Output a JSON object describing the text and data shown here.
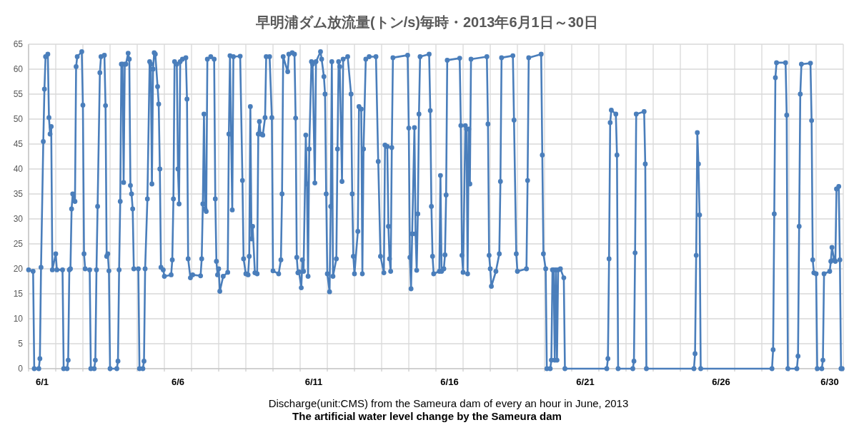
{
  "chart_data": {
    "type": "line",
    "title": "早明浦ダム放流量(トン/s)毎時・2013年6月1日～30日",
    "annotations": [
      "Discharge(unit:CMS) from the Sameura dam of every an hour in June, 2013",
      "The artificial water level change by the Sameura dam"
    ],
    "marker": "circle",
    "line_style": "solid",
    "grid": true,
    "xlim": [
      "2013-06-01T00:00",
      "2013-07-01T00:00"
    ],
    "ylim": [
      0,
      65
    ],
    "yticks": [
      0,
      5,
      10,
      15,
      20,
      25,
      30,
      35,
      40,
      45,
      50,
      55,
      60,
      65
    ],
    "xticks": [
      {
        "value": "2013-06-01",
        "label": null
      },
      {
        "value": "2013-06-02",
        "label": null
      },
      {
        "value": "2013-06-03",
        "label": null
      },
      {
        "value": "2013-06-04",
        "label": null
      },
      {
        "value": "2013-06-05",
        "label": null
      },
      {
        "value": "2013-06-06",
        "label": null
      },
      {
        "value": "2013-06-07",
        "label": null
      },
      {
        "value": "2013-06-08",
        "label": null
      },
      {
        "value": "2013-06-09",
        "label": null
      },
      {
        "value": "2013-06-10",
        "label": null
      },
      {
        "value": "2013-06-11",
        "label": null
      },
      {
        "value": "2013-06-12",
        "label": null
      },
      {
        "value": "2013-06-13",
        "label": null
      },
      {
        "value": "2013-06-14",
        "label": null
      },
      {
        "value": "2013-06-15",
        "label": null
      },
      {
        "value": "2013-06-16",
        "label": null
      },
      {
        "value": "2013-06-17",
        "label": null
      },
      {
        "value": "2013-06-18",
        "label": null
      },
      {
        "value": "2013-06-19",
        "label": null
      },
      {
        "value": "2013-06-20",
        "label": null
      },
      {
        "value": "2013-06-21",
        "label": null
      },
      {
        "value": "2013-06-22",
        "label": null
      },
      {
        "value": "2013-06-23",
        "label": null
      },
      {
        "value": "2013-06-24",
        "label": null
      },
      {
        "value": "2013-06-25",
        "label": null
      },
      {
        "value": "2013-06-26",
        "label": null
      },
      {
        "value": "2013-06-27",
        "label": null
      },
      {
        "value": "2013-06-28",
        "label": null
      },
      {
        "value": "2013-06-29",
        "label": null
      },
      {
        "value": "2013-06-30",
        "label": null
      },
      {
        "value": "2013-07-01",
        "label": null
      },
      {
        "value": "2013-06-01T12:00",
        "label": "6/1"
      },
      {
        "value": "2013-06-06T12:00",
        "label": "6/6"
      },
      {
        "value": "2013-06-11T12:00",
        "label": "6/11"
      },
      {
        "value": "2013-06-16T12:00",
        "label": "6/16"
      },
      {
        "value": "2013-06-21T12:00",
        "label": "6/21"
      },
      {
        "value": "2013-06-26T12:00",
        "label": "6/26"
      },
      {
        "value": "2013-06-30T12:00",
        "label": "6/30"
      }
    ],
    "series": [
      {
        "color": "#4a7ebb",
        "x": [
          "2013-06-01T00:00",
          "2013-06-01T04:00",
          "2013-06-01T05:00",
          "2013-06-01T09:00",
          "2013-06-01T10:00",
          "2013-06-01T11:00",
          "2013-06-01T13:00",
          "2013-06-01T14:00",
          "2013-06-01T15:00",
          "2013-06-01T17:00",
          "2013-06-01T18:00",
          "2013-06-01T19:00",
          "2013-06-01T20:00",
          "2013-06-01T21:00",
          "2013-06-02T00:00",
          "2013-06-02T01:00",
          "2013-06-02T06:00",
          "2013-06-02T07:00",
          "2013-06-02T10:00",
          "2013-06-02T11:00",
          "2013-06-02T12:00",
          "2013-06-02T13:00",
          "2013-06-02T14:00",
          "2013-06-02T15:00",
          "2013-06-02T17:00",
          "2013-06-02T18:00",
          "2013-06-02T19:00",
          "2013-06-02T23:00",
          "2013-06-03T00:00",
          "2013-06-03T01:00",
          "2013-06-03T02:00",
          "2013-06-03T06:00",
          "2013-06-03T07:00",
          "2013-06-03T10:00",
          "2013-06-03T11:00",
          "2013-06-03T12:00",
          "2013-06-03T13:00",
          "2013-06-03T15:00",
          "2013-06-03T16:00",
          "2013-06-03T19:00",
          "2013-06-03T20:00",
          "2013-06-03T21:00",
          "2013-06-03T22:00",
          "2013-06-03T23:00",
          "2013-06-04T00:00",
          "2013-06-04T06:00",
          "2013-06-04T07:00",
          "2013-06-04T08:00",
          "2013-06-04T09:00",
          "2013-06-04T10:00",
          "2013-06-04T11:00",
          "2013-06-04T12:00",
          "2013-06-04T13:00",
          "2013-06-04T14:00",
          "2013-06-04T16:00",
          "2013-06-04T17:00",
          "2013-06-04T18:00",
          "2013-06-04T19:00",
          "2013-06-04T20:00",
          "2013-06-04T21:00",
          "2013-06-05T01:00",
          "2013-06-05T02:00",
          "2013-06-05T05:00",
          "2013-06-05T06:00",
          "2013-06-05T07:00",
          "2013-06-05T09:00",
          "2013-06-05T11:00",
          "2013-06-05T12:00",
          "2013-06-05T13:00",
          "2013-06-05T14:00",
          "2013-06-05T15:00",
          "2013-06-05T16:00",
          "2013-06-05T18:00",
          "2013-06-05T19:00",
          "2013-06-05T20:00",
          "2013-06-05T21:00",
          "2013-06-05T23:00",
          "2013-06-06T00:00",
          "2013-06-06T06:00",
          "2013-06-06T07:00",
          "2013-06-06T08:00",
          "2013-06-06T09:00",
          "2013-06-06T11:00",
          "2013-06-06T12:00",
          "2013-06-06T13:00",
          "2013-06-06T14:00",
          "2013-06-06T16:00",
          "2013-06-06T19:00",
          "2013-06-06T20:00",
          "2013-06-06T21:00",
          "2013-06-06T23:00",
          "2013-06-07T01:00",
          "2013-06-07T08:00",
          "2013-06-07T09:00",
          "2013-06-07T10:00",
          "2013-06-07T11:00",
          "2013-06-07T12:00",
          "2013-06-07T13:00",
          "2013-06-07T14:00",
          "2013-06-07T17:00",
          "2013-06-07T20:00",
          "2013-06-07T21:00",
          "2013-06-07T22:00",
          "2013-06-07T23:00",
          "2013-06-08T00:00",
          "2013-06-08T01:00",
          "2013-06-08T04:00",
          "2013-06-08T08:00",
          "2013-06-08T09:00",
          "2013-06-08T10:00",
          "2013-06-08T11:00",
          "2013-06-08T12:00",
          "2013-06-08T13:00",
          "2013-06-08T19:00",
          "2013-06-08T21:00",
          "2013-06-08T22:00",
          "2013-06-09T00:00",
          "2013-06-09T02:00",
          "2013-06-09T03:00",
          "2013-06-09T04:00",
          "2013-06-09T05:00",
          "2013-06-09T06:00",
          "2013-06-09T08:00",
          "2013-06-09T10:00",
          "2013-06-09T11:00",
          "2013-06-09T12:00",
          "2013-06-09T13:00",
          "2013-06-09T15:00",
          "2013-06-09T17:00",
          "2013-06-09T18:00",
          "2013-06-09T21:00",
          "2013-06-09T23:00",
          "2013-06-10T00:00",
          "2013-06-10T05:00",
          "2013-06-10T07:00",
          "2013-06-10T08:00",
          "2013-06-10T09:00",
          "2013-06-10T13:00",
          "2013-06-10T14:00",
          "2013-06-10T17:00",
          "2013-06-10T19:00",
          "2013-06-10T20:00",
          "2013-06-10T21:00",
          "2013-06-10T22:00",
          "2013-06-10T23:00",
          "2013-06-11T01:00",
          "2013-06-11T02:00",
          "2013-06-11T03:00",
          "2013-06-11T05:00",
          "2013-06-11T06:00",
          "2013-06-11T07:00",
          "2013-06-11T08:00",
          "2013-06-11T10:00",
          "2013-06-11T11:00",
          "2013-06-11T13:00",
          "2013-06-11T14:00",
          "2013-06-11T18:00",
          "2013-06-11T19:00",
          "2013-06-11T21:00",
          "2013-06-11T22:00",
          "2013-06-11T23:00",
          "2013-06-12T00:00",
          "2013-06-12T02:00",
          "2013-06-12T03:00",
          "2013-06-12T04:00",
          "2013-06-12T05:00",
          "2013-06-12T08:00",
          "2013-06-12T09:00",
          "2013-06-12T10:00",
          "2013-06-12T11:00",
          "2013-06-12T13:00",
          "2013-06-12T14:00",
          "2013-06-12T18:00",
          "2013-06-12T21:00",
          "2013-06-12T22:00",
          "2013-06-12T23:00",
          "2013-06-13T00:00",
          "2013-06-13T03:00",
          "2013-06-13T04:00",
          "2013-06-13T06:00",
          "2013-06-13T07:00",
          "2013-06-13T08:00",
          "2013-06-13T10:00",
          "2013-06-13T13:00",
          "2013-06-13T19:00",
          "2013-06-13T21:00",
          "2013-06-13T23:00",
          "2013-06-14T02:00",
          "2013-06-14T03:00",
          "2013-06-14T05:00",
          "2013-06-14T06:00",
          "2013-06-14T07:00",
          "2013-06-14T08:00",
          "2013-06-14T09:00",
          "2013-06-14T10:00",
          "2013-06-14T23:00",
          "2013-06-15T00:00",
          "2013-06-15T01:00",
          "2013-06-15T02:00",
          "2013-06-15T03:00",
          "2013-06-15T05:00",
          "2013-06-15T06:00",
          "2013-06-15T07:00",
          "2013-06-15T08:00",
          "2013-06-15T09:00",
          "2013-06-15T10:00",
          "2013-06-15T18:00",
          "2013-06-15T19:00",
          "2013-06-15T20:00",
          "2013-06-15T21:00",
          "2013-06-15T22:00",
          "2013-06-16T03:00",
          "2013-06-16T04:00",
          "2013-06-16T05:00",
          "2013-06-16T07:00",
          "2013-06-16T08:00",
          "2013-06-16T09:00",
          "2013-06-16T10:00",
          "2013-06-16T21:00",
          "2013-06-16T22:00",
          "2013-06-16T23:00",
          "2013-06-17T00:00",
          "2013-06-17T02:00",
          "2013-06-17T03:00",
          "2013-06-17T04:00",
          "2013-06-17T05:00",
          "2013-06-17T06:00",
          "2013-06-17T07:00",
          "2013-06-17T21:00",
          "2013-06-17T22:00",
          "2013-06-17T23:00",
          "2013-06-18T00:00",
          "2013-06-18T01:00",
          "2013-06-18T05:00",
          "2013-06-18T08:00",
          "2013-06-18T09:00",
          "2013-06-18T10:00",
          "2013-06-18T20:00",
          "2013-06-18T21:00",
          "2013-06-18T23:00",
          "2013-06-19T00:00",
          "2013-06-19T08:00",
          "2013-06-19T09:00",
          "2013-06-19T10:00",
          "2013-06-19T21:00",
          "2013-06-19T22:00",
          "2013-06-19T23:00",
          "2013-06-20T01:00",
          "2013-06-20T02:00",
          "2013-06-20T05:00",
          "2013-06-20T06:00",
          "2013-06-20T07:00",
          "2013-06-20T08:00",
          "2013-06-20T09:00",
          "2013-06-20T10:00",
          "2013-06-20T11:00",
          "2013-06-20T12:00",
          "2013-06-20T14:00",
          "2013-06-20T17:00",
          "2013-06-20T18:00",
          "2013-06-22T07:00",
          "2013-06-22T08:00",
          "2013-06-22T09:00",
          "2013-06-22T10:00",
          "2013-06-22T11:00",
          "2013-06-22T15:00",
          "2013-06-22T16:00",
          "2013-06-22T17:00",
          "2013-06-23T06:00",
          "2013-06-23T07:00",
          "2013-06-23T08:00",
          "2013-06-23T09:00",
          "2013-06-23T16:00",
          "2013-06-23T17:00",
          "2013-06-23T18:00",
          "2013-06-25T12:00",
          "2013-06-25T13:00",
          "2013-06-25T14:00",
          "2013-06-25T15:00",
          "2013-06-25T16:00",
          "2013-06-25T17:00",
          "2013-06-25T18:00",
          "2013-06-28T09:00",
          "2013-06-28T10:00",
          "2013-06-28T11:00",
          "2013-06-28T12:00",
          "2013-06-28T13:00",
          "2013-06-28T21:00",
          "2013-06-28T22:00",
          "2013-06-28T23:00",
          "2013-06-29T07:00",
          "2013-06-29T08:00",
          "2013-06-29T09:00",
          "2013-06-29T10:00",
          "2013-06-29T11:00",
          "2013-06-29T19:00",
          "2013-06-29T20:00",
          "2013-06-29T21:00",
          "2013-06-29T22:00",
          "2013-06-30T00:00",
          "2013-06-30T01:00",
          "2013-06-30T05:00",
          "2013-06-30T06:00",
          "2013-06-30T07:00",
          "2013-06-30T12:00",
          "2013-06-30T13:00",
          "2013-06-30T14:00",
          "2013-06-30T16:00",
          "2013-06-30T17:00",
          "2013-06-30T18:00",
          "2013-06-30T20:00",
          "2013-06-30T21:00",
          "2013-06-30T22:00",
          "2013-06-30T23:00"
        ],
        "values": [
          19.8,
          19.5,
          0,
          0,
          2,
          20.3,
          45.5,
          56,
          62.5,
          63,
          50.3,
          47,
          48.5,
          19.8,
          23,
          19.8,
          19.8,
          0,
          0,
          1.7,
          19.8,
          20,
          32,
          35,
          33.5,
          60.5,
          62.5,
          63.5,
          52.8,
          23,
          20,
          19.8,
          0,
          0,
          1.7,
          19.8,
          32.5,
          59.3,
          62.5,
          62.8,
          52.7,
          22.5,
          23,
          19.6,
          0,
          0,
          1.5,
          19.8,
          33.5,
          61,
          61,
          37.3,
          61,
          61,
          63.2,
          62,
          36.7,
          35,
          32,
          20,
          20,
          0,
          0,
          1.5,
          20,
          34,
          61.5,
          61,
          37,
          60,
          63.3,
          63,
          56.5,
          53,
          40,
          20.3,
          19.8,
          18.5,
          18.8,
          21.8,
          34,
          61.5,
          61,
          40,
          33,
          61.5,
          62,
          62.3,
          54,
          22,
          18.2,
          18.8,
          18.6,
          22,
          33,
          51,
          32,
          31.5,
          62,
          62.5,
          62,
          34,
          21.5,
          18.8,
          20,
          15.5,
          18.5,
          19.3,
          47,
          62.7,
          47,
          31.8,
          62.5,
          62.6,
          37.7,
          22,
          19,
          18.8,
          22.5,
          52.5,
          26,
          28.5,
          19.2,
          19,
          47,
          49.5,
          47,
          46.8,
          50.3,
          62.5,
          62.5,
          50.3,
          19.6,
          19,
          21.8,
          35,
          62.5,
          59.5,
          63,
          63.3,
          63,
          50.2,
          22.3,
          19.2,
          19.4,
          16.2,
          21.8,
          19.5,
          46.8,
          37,
          18.5,
          44,
          61.5,
          61,
          37.2,
          61.5,
          63.5,
          62,
          58.5,
          55,
          35,
          19,
          15.4,
          32.5,
          61.5,
          18.5,
          22,
          44,
          61.5,
          60.5,
          37.5,
          62,
          62.5,
          55,
          35,
          22.5,
          19,
          27.5,
          52.5,
          52,
          19,
          44,
          62,
          62.5,
          62.5,
          41.5,
          22.5,
          19.2,
          44.8,
          44.5,
          28.5,
          22,
          19.5,
          44.3,
          62.3,
          62.8,
          48.2,
          22.3,
          16,
          27,
          48.3,
          27,
          19.7,
          31,
          51,
          62.5,
          63,
          51.7,
          32.5,
          22.5,
          19,
          19.5,
          38.7,
          19.5,
          20,
          22.8,
          34.8,
          61.8,
          62.2,
          48.7,
          22.7,
          19.3,
          48.7,
          48,
          19,
          48,
          37,
          62,
          62.5,
          49,
          22.7,
          20,
          16.5,
          19.5,
          23,
          37.5,
          62.3,
          62.7,
          49.8,
          23,
          19.5,
          20,
          37.7,
          62.3,
          63,
          42.8,
          23,
          20,
          0,
          0,
          1.7,
          19.8,
          19.8,
          1.7,
          19.8,
          1.7,
          19.8,
          20,
          18.2,
          0,
          0,
          2,
          22,
          49.3,
          51.8,
          51,
          42.8,
          0,
          0,
          1.5,
          23.2,
          51,
          51.5,
          41,
          0,
          0,
          3,
          22.7,
          47.3,
          41,
          30.8,
          0,
          0,
          3.8,
          31,
          58.3,
          61.3,
          61.3,
          50.8,
          0,
          0,
          2.5,
          28.5,
          55,
          61,
          61.2,
          49.7,
          21.8,
          19.2,
          19,
          0,
          0,
          1.7,
          19,
          19.5,
          21.5,
          24.3,
          21.8,
          21.5,
          36,
          36.5,
          21.8,
          0,
          0
        ]
      }
    ]
  }
}
